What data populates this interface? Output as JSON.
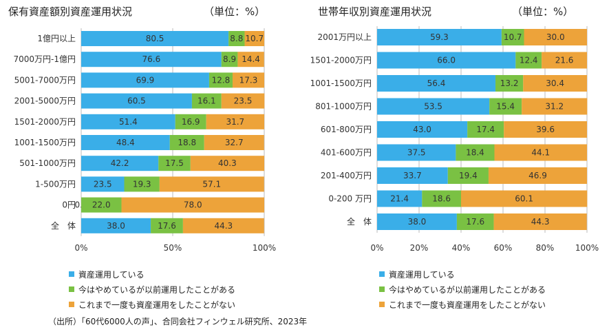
{
  "colors": {
    "s0": "#3aaee8",
    "s1": "#7ac143",
    "s2": "#eda33a",
    "grid": "#bbbbbb"
  },
  "legend_labels": [
    "資産運用している",
    "今はやめているが以前運用したことがある",
    "これまで一度も資産運用をしたことがない"
  ],
  "source": "（出所）「60代6000人の声」、合同会社フィンウェル研究所、2023年",
  "chart_data": [
    {
      "type": "bar",
      "stacked": true,
      "orientation": "horizontal",
      "title": "保有資産額別資産運用状況",
      "unit": "（単位：%）",
      "categories": [
        "1億円以上",
        "7000万円-1億円",
        "5001-7000万円",
        "2001-5000万円",
        "1501-2000万円",
        "1001-1500万円",
        "501-1000万円",
        "1-500万円",
        "0円",
        "全　体"
      ],
      "series": [
        {
          "name": "資産運用している",
          "values": [
            80.5,
            76.6,
            69.9,
            60.5,
            51.4,
            48.4,
            42.2,
            23.5,
            0.0,
            38.0
          ]
        },
        {
          "name": "今はやめているが以前運用したことがある",
          "values": [
            8.8,
            8.9,
            12.8,
            16.1,
            16.9,
            18.8,
            17.5,
            19.3,
            22.0,
            17.6
          ]
        },
        {
          "name": "これまで一度も資産運用をしたことがない",
          "values": [
            10.7,
            14.4,
            17.3,
            23.5,
            31.7,
            32.7,
            40.3,
            57.1,
            78.0,
            44.3
          ]
        }
      ],
      "xlim": [
        0,
        100
      ],
      "xticks": [
        "0%",
        "50%",
        "100%"
      ],
      "xtick_values": [
        0,
        50,
        100
      ],
      "grid": true,
      "legend": "bottom"
    },
    {
      "type": "bar",
      "stacked": true,
      "orientation": "horizontal",
      "title": "世帯年収別資産運用状況",
      "unit": "（単位：%）",
      "categories": [
        "2001万円以上",
        "1501-2000万円",
        "1001-1500万円",
        "801-1000万円",
        "601-800万円",
        "401-600万円",
        "201-400万円",
        "0-200 万円",
        "全　体"
      ],
      "series": [
        {
          "name": "資産運用している",
          "values": [
            59.3,
            66.0,
            56.4,
            53.5,
            43.0,
            37.5,
            33.7,
            21.4,
            38.0
          ]
        },
        {
          "name": "今はやめているが以前運用したことがある",
          "values": [
            10.7,
            12.4,
            13.2,
            15.4,
            17.4,
            18.4,
            19.4,
            18.6,
            17.6
          ]
        },
        {
          "name": "これまで一度も資産運用をしたことがない",
          "values": [
            30.0,
            21.6,
            30.4,
            31.2,
            39.6,
            44.1,
            46.9,
            60.1,
            44.3
          ]
        }
      ],
      "xlim": [
        0,
        100
      ],
      "xticks": [
        "0%",
        "20%",
        "40%",
        "60%",
        "80%",
        "100%"
      ],
      "xtick_values": [
        0,
        20,
        40,
        60,
        80,
        100
      ],
      "grid": true,
      "legend": "bottom"
    }
  ]
}
